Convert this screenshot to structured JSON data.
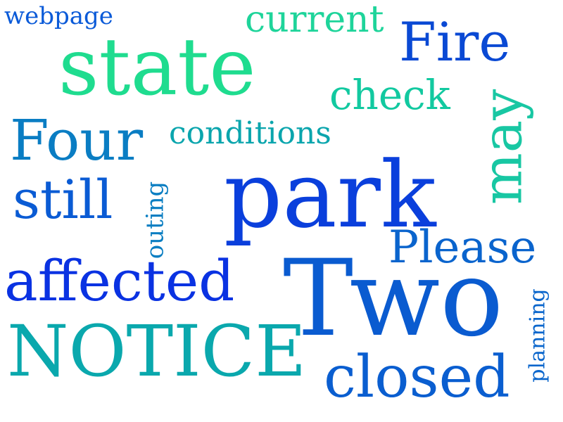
{
  "palette": {
    "background": "#ffffff",
    "colors": [
      "#0a3fdc",
      "#0558d0",
      "#0872c4",
      "#0a8fb8",
      "#0aa6ad",
      "#1ec79e",
      "#20dd90"
    ]
  },
  "words": [
    {
      "text": "webpage",
      "color": "#0a5ad8",
      "rotated": false
    },
    {
      "text": "current",
      "color": "#1ed49a",
      "rotated": false
    },
    {
      "text": "Fire",
      "color": "#0a49d4",
      "rotated": false
    },
    {
      "text": "state",
      "color": "#1fdc8f",
      "rotated": false
    },
    {
      "text": "check",
      "color": "#12c9a0",
      "rotated": false
    },
    {
      "text": "may",
      "color": "#18c7a3",
      "rotated": true
    },
    {
      "text": "Four",
      "color": "#0a7dc3",
      "rotated": false
    },
    {
      "text": "conditions",
      "color": "#0aa5ad",
      "rotated": false
    },
    {
      "text": "park",
      "color": "#0a3fdc",
      "rotated": false
    },
    {
      "text": "still",
      "color": "#0a5bd4",
      "rotated": false
    },
    {
      "text": "outing",
      "color": "#0a7ec2",
      "rotated": true
    },
    {
      "text": "Please",
      "color": "#0a64cd",
      "rotated": false
    },
    {
      "text": "affected",
      "color": "#0a32e2",
      "rotated": false
    },
    {
      "text": "Two",
      "color": "#0a5bd0",
      "rotated": false
    },
    {
      "text": "planning",
      "color": "#0a66cc",
      "rotated": true
    },
    {
      "text": "NOTICE",
      "color": "#0aa8ad",
      "rotated": false
    },
    {
      "text": "closed",
      "color": "#0a5ed0",
      "rotated": false
    }
  ]
}
